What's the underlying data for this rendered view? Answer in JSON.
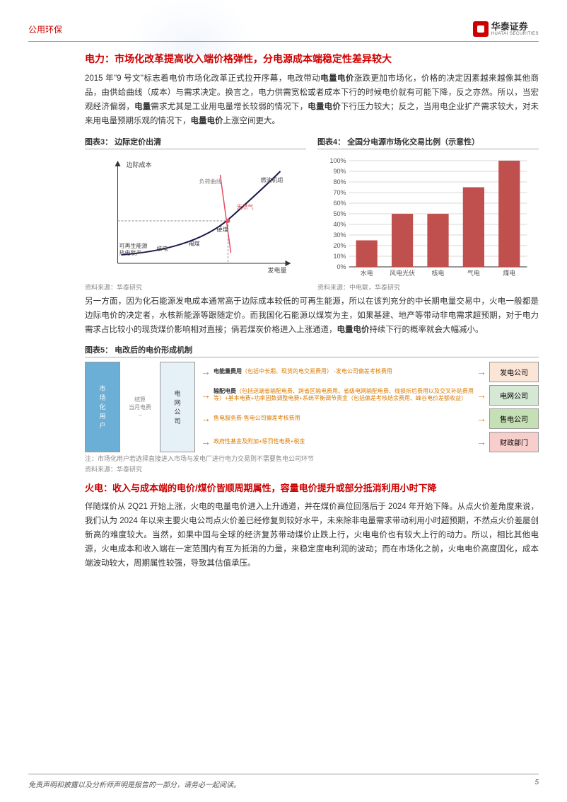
{
  "header": {
    "category": "公用环保",
    "logo_cn": "华泰证券",
    "logo_en": "HUATAI SECURITIES"
  },
  "section1": {
    "title": "电力：市场化改革提高收入端价格弹性，分电源成本端稳定性差异较大",
    "para1": "2015 年\"9 号文\"标志着电价市场化改革正式拉开序幕，电改带动电量电价涨跌更加市场化，价格的决定因素越来越像其他商品，由供给曲线（成本）与需求决定。换言之，电力供需宽松或者成本下行的时候电价就有可能下降，反之亦然。所以，当宏观经济偏弱，电量需求尤其是工业用电量增长较弱的情况下，电量电价下行压力较大；反之，当用电企业扩产需求较大，对未来用电量预期乐观的情况下，电量电价上涨空间更大。"
  },
  "chart3": {
    "title": "图表3：  边际定价出清",
    "ylabel": "边际成本",
    "xlabel": "发电量",
    "labels": {
      "renewable": "可再生能源\n热电联产",
      "nuclear": "核电",
      "lignite": "褐煤",
      "hardcoal": "硬煤",
      "gas": "天然气",
      "oil": "燃油机组",
      "load": "负荷曲线"
    },
    "colors": {
      "curve": "#1a1a4d",
      "load": "#e84a5f",
      "dash": "#888",
      "text": "#444",
      "gas": "#d94a4a",
      "axis": "#333"
    },
    "source": "资料来源：华泰研究"
  },
  "chart4": {
    "title": "图表4：  全国分电源市场化交易比例（示意性）",
    "type": "bar",
    "categories": [
      "水电",
      "风电光伏",
      "核电",
      "气电",
      "煤电"
    ],
    "values": [
      25,
      50,
      50,
      75,
      100
    ],
    "ylim": [
      0,
      100
    ],
    "ytick_step": 10,
    "ysuffix": "%",
    "bar_color": "#c0504d",
    "grid_color": "#d9d9d9",
    "axis_color": "#333",
    "label_fontsize": 9,
    "source": "资料来源：中电联，华泰研究"
  },
  "para2": "另一方面，因为化石能源发电成本通常高于边际成本较低的可再生能源，所以在该判充分的中长期电量交易中，火电一般都是边际电价的决定者，水核新能源等跟随定价。而我国化石能源以煤炭为主，如果基建、地产等带动非电需求超预期，对于电力需求占比较小的现货煤价影响相对直接；倘若煤炭价格进入上涨通道，电量电价持续下行的概率就会大幅减小。",
  "chart5": {
    "title": "图表5：  电改后的电价形成机制",
    "user": "市场化用户",
    "arrow1": "结算\n当月电费",
    "grid": "电网公司",
    "lines": [
      {
        "text_b": "电能量费用",
        "text": "（包括中长期、现货的电交易费用）\n-发电公司偏差考核费用",
        "right": "发电公司",
        "right_bg": "#fbe5d6",
        "color": "#d97a00"
      },
      {
        "text_b": "输配电费",
        "text": "（包括送端省输配电费、跨省区输电费用、省级电网输配电费、线损折后费用以及交叉补贴费用等）+基本电费+功率因数调整电费+系统平衡调节责金（包括偏差考核结余费用、峰谷电价差额收益）",
        "right": "电网公司",
        "right_bg": "#d5e8d4",
        "color": "#d97a00"
      },
      {
        "text_b": "",
        "text": "售电服务费-售电公司偏差考核费用",
        "right": "售电公司",
        "right_bg": "#c5e0b4",
        "color": "#d97a00"
      },
      {
        "text_b": "",
        "text": "政府性基金及附加+惩罚性电费+税金",
        "right": "财政部门",
        "right_bg": "#f8cecc",
        "color": "#d97a00"
      }
    ],
    "note": "注：市场化用户若选择直接进入市场与发电厂进行电力交易则不需要售电公司环节",
    "source": "资料来源：华泰研究"
  },
  "section2": {
    "title": "火电：收入与成本端的电价/煤价皆顺周期属性，容量电价提升或部分抵消利用小时下降",
    "para": "伴随煤价从 2Q21 开始上涨，火电的电量电价进入上升通道，并在煤价高位回落后于 2024 年开始下降。从点火价差角度来说，我们认为 2024 年以来主要火电公司点火价差已经修复到较好水平，未来除非电量需求带动利用小时超预期，不然点火价差屡创新高的难度较大。当然，如果中国与全球的经济复苏带动煤价止跌上行，火电电价也有较大上行的动力。所以，相比其他电源，火电成本和收入端在一定范围内有互为抵消的力量，来稳定度电利润的波动；而在市场化之前，火电电价高度固化，成本端波动较大，周期属性较强，导致其估值承压。"
  },
  "footer": {
    "disclaimer": "免责声明和披露以及分析师声明是报告的一部分，请务必一起阅读。",
    "page": "5"
  }
}
